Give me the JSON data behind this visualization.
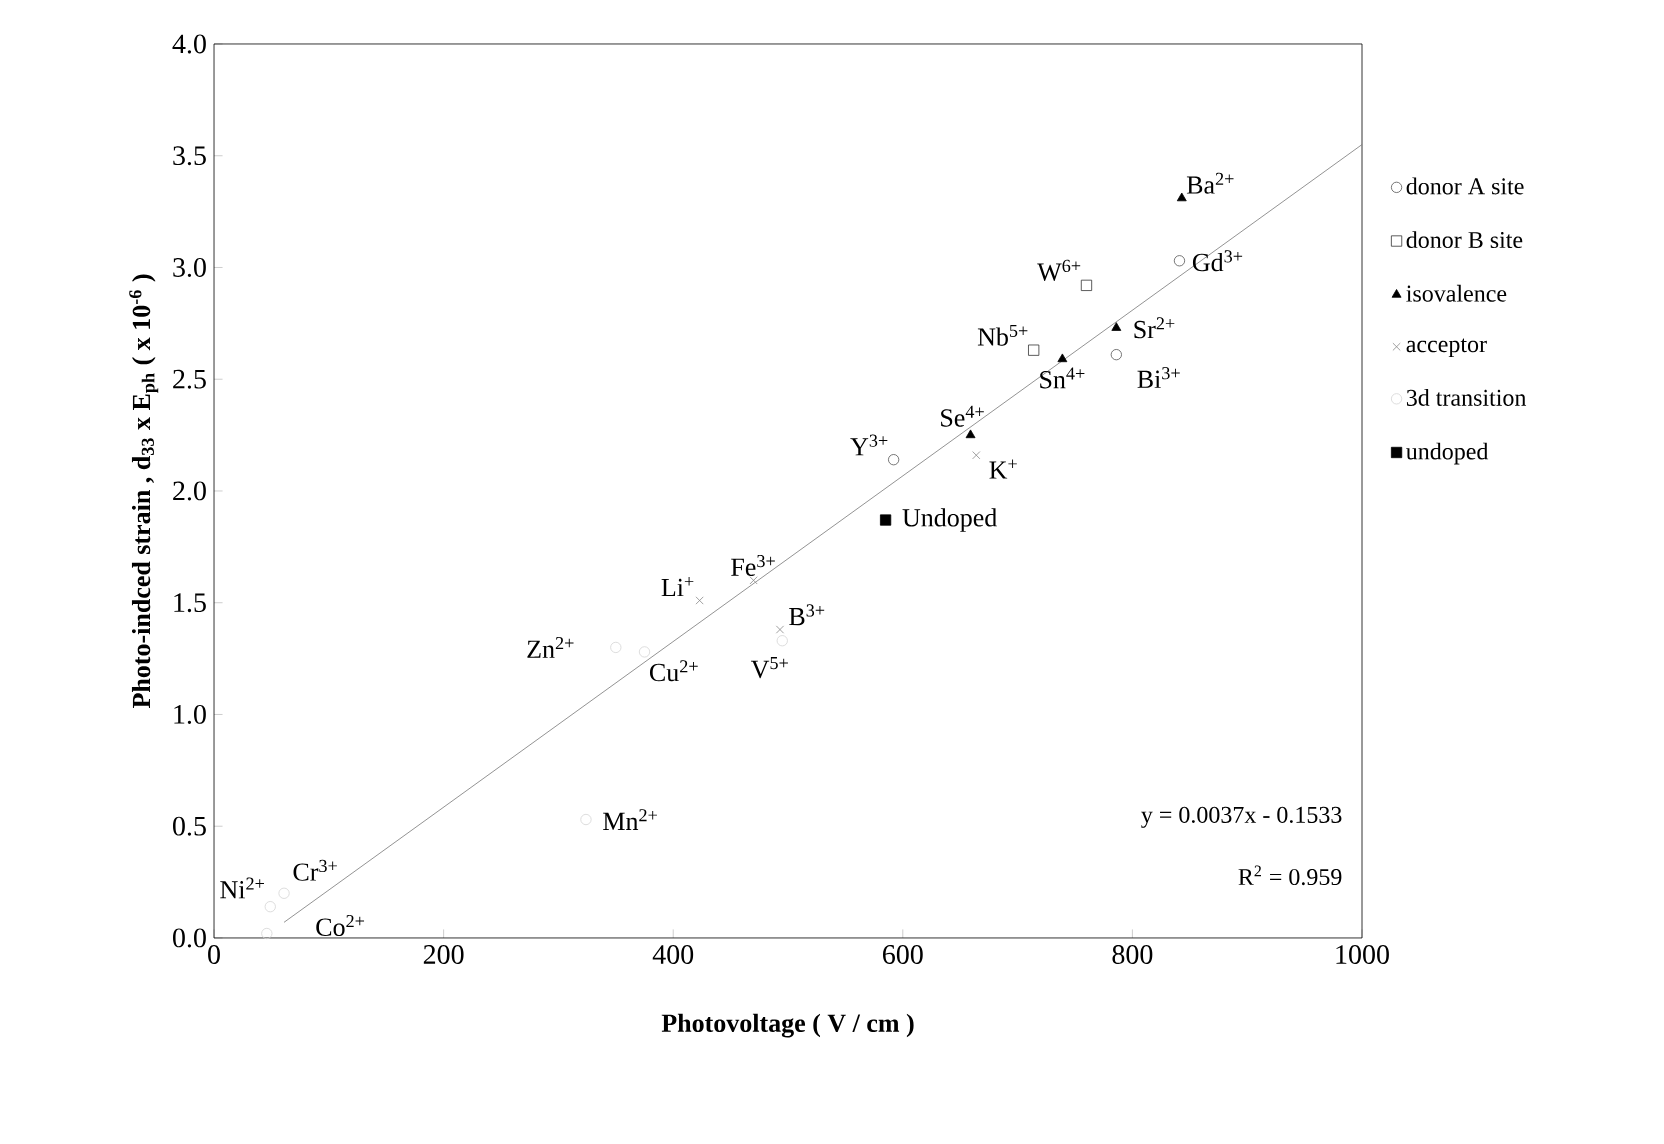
{
  "chart_data": {
    "type": "scatter",
    "xlabel": "Photovoltage ( V / cm )",
    "ylabel": "Photo-indced strain , d$_{33}$ x E$_{ph}$ ( x 10$^{-6}$ )",
    "xlim": [
      0,
      1000
    ],
    "ylim": [
      0,
      4
    ],
    "xticks": [
      0,
      200,
      400,
      600,
      800,
      1000
    ],
    "yticks": [
      {
        "value": 0,
        "label": "0.0"
      },
      {
        "value": 0.5,
        "label": "0.5"
      },
      {
        "value": 1,
        "label": "1.0"
      },
      {
        "value": 1.5,
        "label": "1.5"
      },
      {
        "value": 2,
        "label": "2.0"
      },
      {
        "value": 2.5,
        "label": "2.5"
      },
      {
        "value": 3,
        "label": "3.0"
      },
      {
        "value": 3.5,
        "label": "3.5"
      },
      {
        "value": 4,
        "label": "4.0"
      }
    ],
    "grid": false,
    "legend": "right",
    "series": [
      {
        "name": "donor A site",
        "color": "#555555",
        "marker": "circle",
        "x": [
          841,
          786,
          592
        ],
        "values": [
          3.03,
          2.61,
          2.14
        ]
      },
      {
        "name": "donor B site",
        "color": "#333333",
        "marker": "square",
        "x": [
          760,
          714
        ],
        "values": [
          2.92,
          2.63
        ]
      },
      {
        "name": "isovalence",
        "color": "#000000",
        "marker": "triangle",
        "x": [
          843,
          786,
          739,
          659
        ],
        "values": [
          3.31,
          2.73,
          2.59,
          2.25
        ]
      },
      {
        "name": "acceptor",
        "color": "#888888",
        "marker": "cross",
        "x": [
          423,
          470,
          493,
          664
        ],
        "values": [
          1.51,
          1.6,
          1.38,
          2.16
        ]
      },
      {
        "name": "3d transition",
        "color": "#d4d4d4",
        "marker": "circle",
        "x": [
          49,
          61,
          46,
          324,
          350,
          375,
          495
        ],
        "values": [
          0.14,
          0.2,
          0.02,
          0.53,
          1.3,
          1.28,
          1.33
        ]
      },
      {
        "name": "undoped",
        "color": "#000000",
        "marker": "square",
        "x": [
          585
        ],
        "values": [
          1.87
        ]
      },
      {
        "type": "line",
        "color": "#777777",
        "marker": "none",
        "x": [
          61,
          1000
        ],
        "values": [
          0.07,
          3.55
        ]
      }
    ],
    "annotations": [
      {
        "text": "Ni$^{2+}$",
        "x": 49,
        "y": 0.14
      },
      {
        "text": "Cr$^{3+}$",
        "x": 61,
        "y": 0.2
      },
      {
        "text": "Co$^{2+}$",
        "x": 46,
        "y": 0.02
      },
      {
        "text": "Mn$^{2+}$",
        "x": 324,
        "y": 0.53
      },
      {
        "text": "Zn$^{2+}$",
        "x": 350,
        "y": 1.3
      },
      {
        "text": "Cu$^{2+}$",
        "x": 375,
        "y": 1.28
      },
      {
        "text": "V$^{5+}$",
        "x": 495,
        "y": 1.33
      },
      {
        "text": "B$^{3+}$",
        "x": 493,
        "y": 1.38
      },
      {
        "text": "Li$^{+}$",
        "x": 423,
        "y": 1.51
      },
      {
        "text": "Fe$^{3+}$",
        "x": 470,
        "y": 1.6
      },
      {
        "text": "Y$^{3+}$",
        "x": 592,
        "y": 2.14
      },
      {
        "text": "K$^{+}$",
        "x": 664,
        "y": 2.16
      },
      {
        "text": "Se$^{4+}$",
        "x": 659,
        "y": 2.25
      },
      {
        "text": "Sn$^{4+}$",
        "x": 739,
        "y": 2.59
      },
      {
        "text": "Bi$^{3+}$",
        "x": 786,
        "y": 2.61
      },
      {
        "text": "Sr$^{2+}$",
        "x": 786,
        "y": 2.73
      },
      {
        "text": "Gd$^{3+}$",
        "x": 841,
        "y": 3.03
      },
      {
        "text": "W$^{6+}$",
        "x": 760,
        "y": 2.92
      },
      {
        "text": "Nb$^{5+}$",
        "x": 714,
        "y": 2.63
      },
      {
        "text": "Ba$^{2+}$",
        "x": 843,
        "y": 3.31
      },
      {
        "text": "Undoped",
        "x": 585,
        "y": 1.87
      },
      "y = 0.0037x - 0.1533",
      "R$^{2}$ = 0.959"
    ]
  }
}
